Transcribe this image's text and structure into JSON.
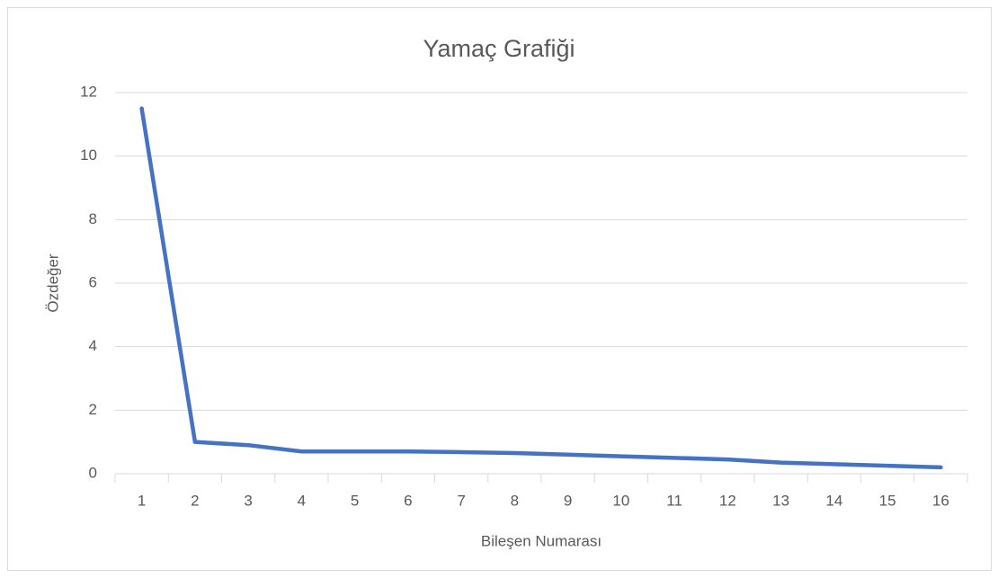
{
  "chart_data": {
    "type": "line",
    "title": "Yamaç Grafiği",
    "xlabel": "Bileşen Numarası",
    "ylabel": "Özdeğer",
    "categories": [
      "1",
      "2",
      "3",
      "4",
      "5",
      "6",
      "7",
      "8",
      "9",
      "10",
      "11",
      "12",
      "13",
      "14",
      "15",
      "16"
    ],
    "values": [
      11.5,
      1.0,
      0.9,
      0.7,
      0.7,
      0.7,
      0.68,
      0.65,
      0.6,
      0.55,
      0.5,
      0.45,
      0.35,
      0.3,
      0.25,
      0.2
    ],
    "color": "#4472c4",
    "ylim": [
      0,
      12
    ],
    "yticks": [
      0,
      2,
      4,
      6,
      8,
      10,
      12
    ],
    "grid": true
  }
}
